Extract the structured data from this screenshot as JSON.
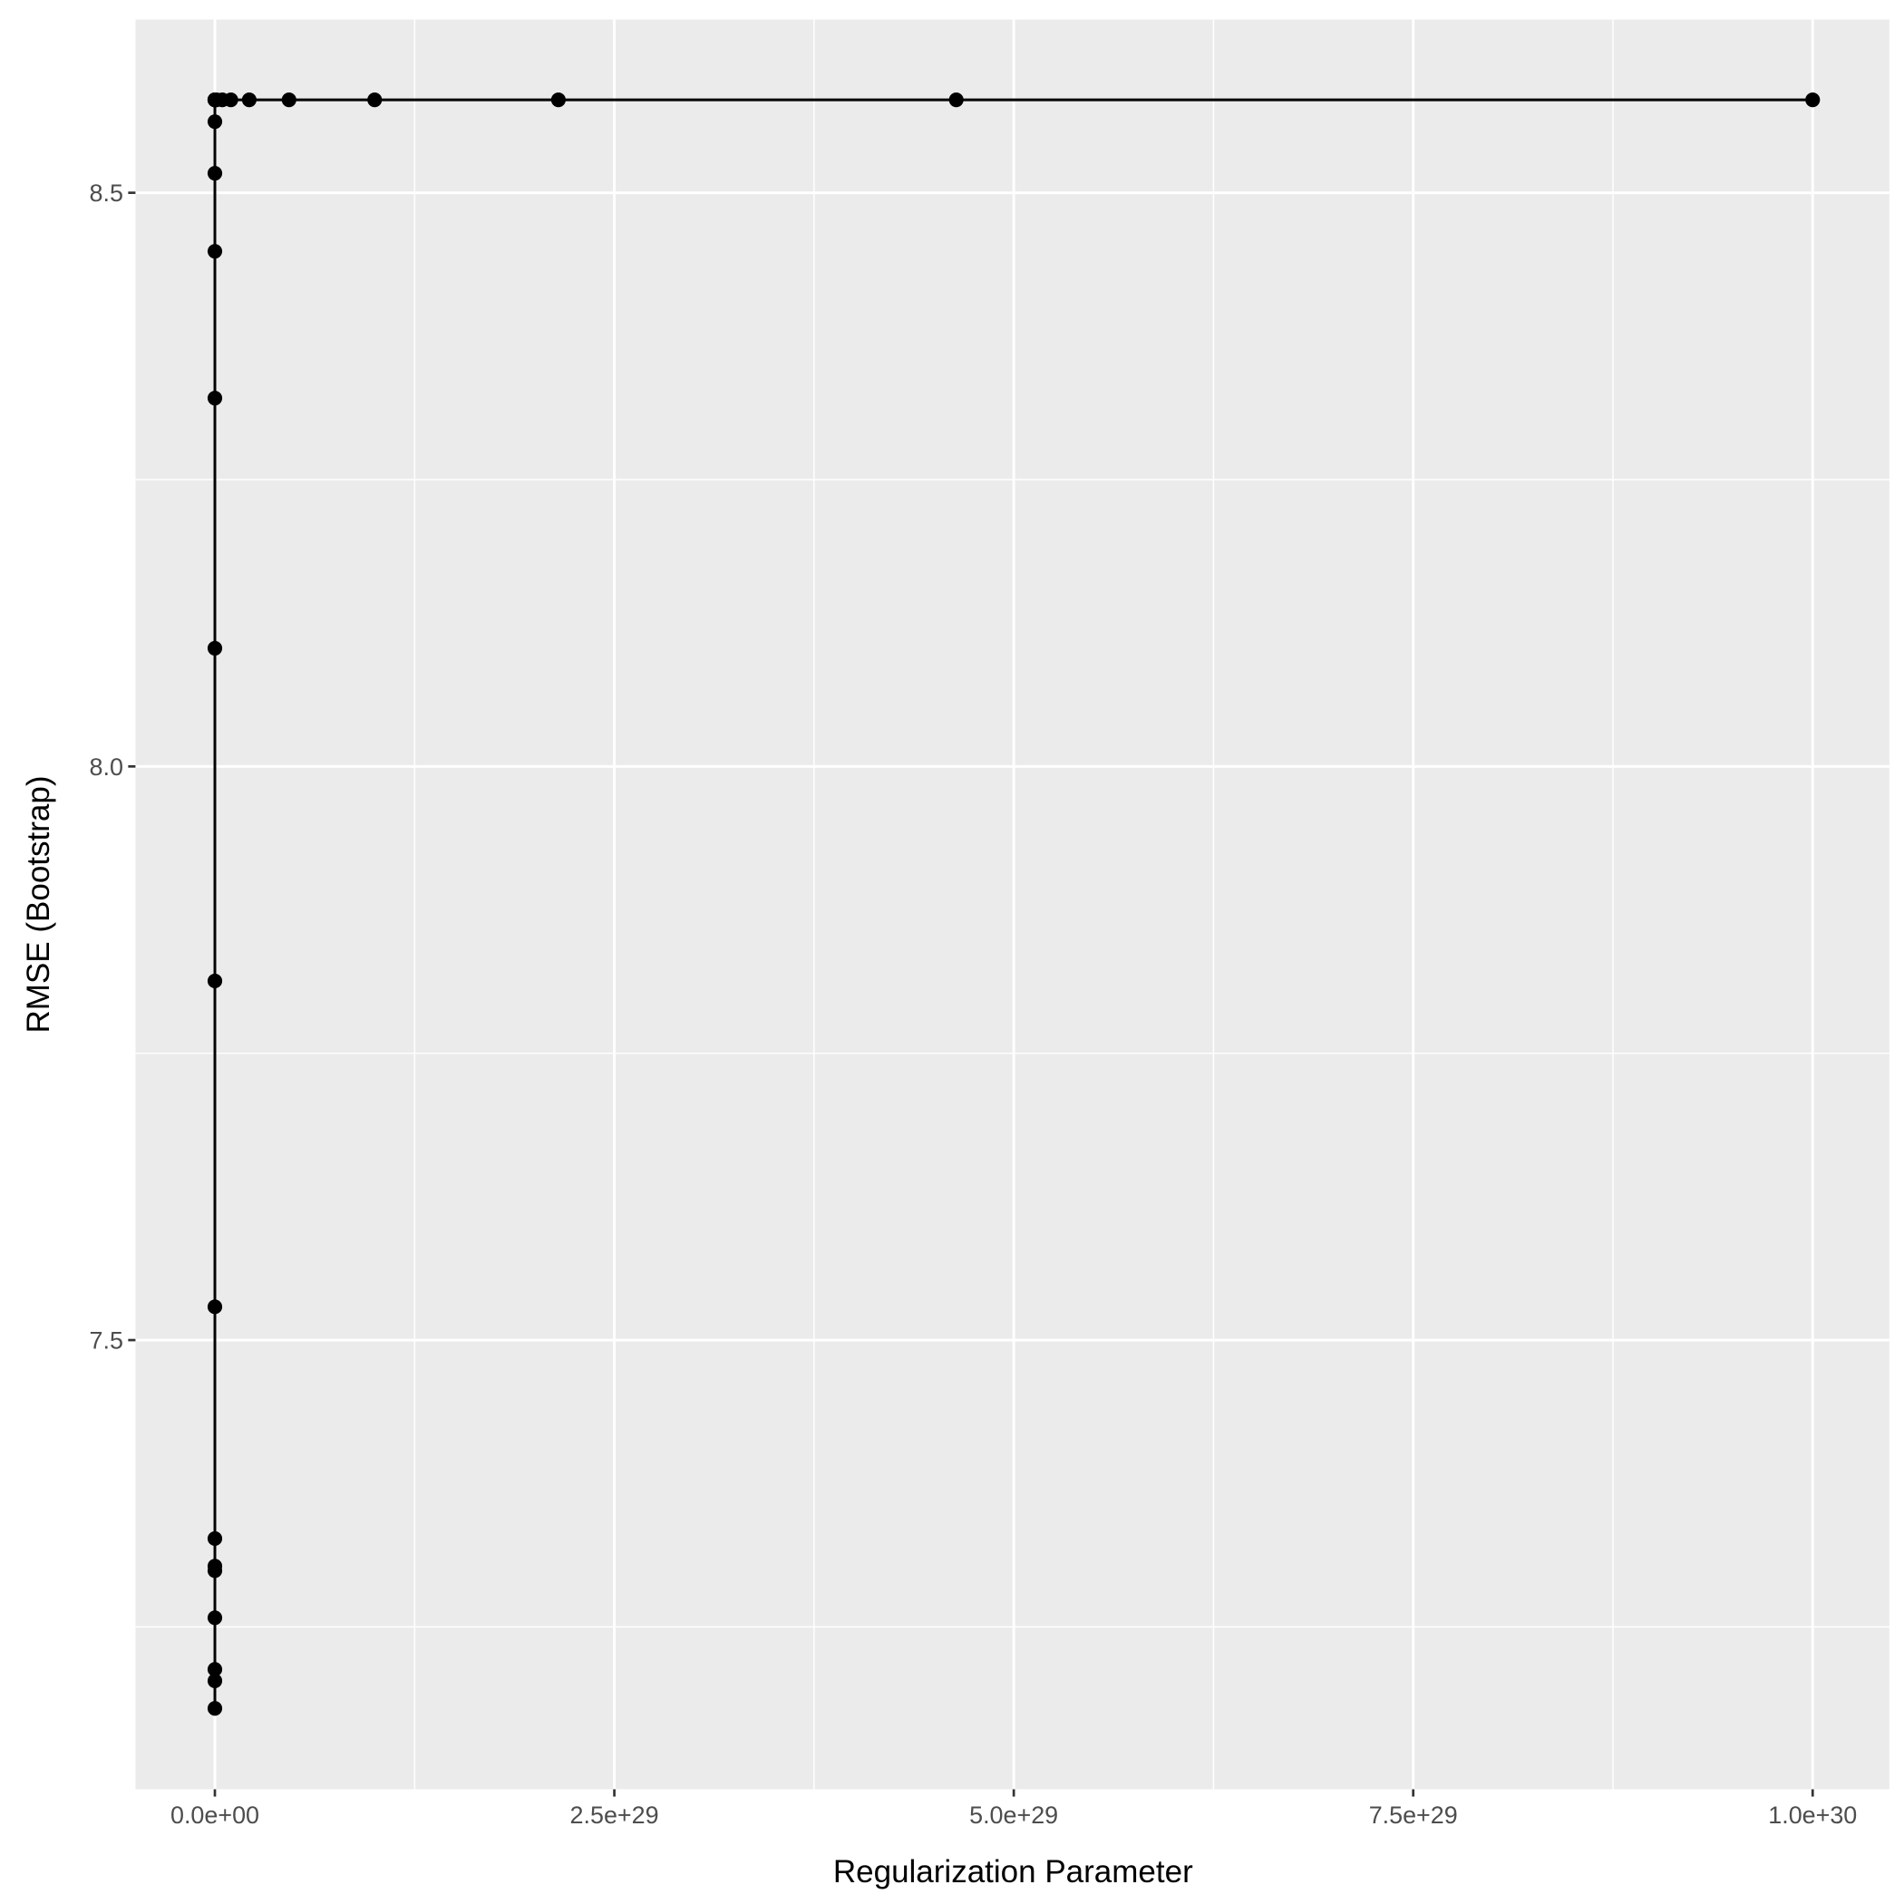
{
  "chart_data": {
    "type": "line",
    "x_label": "Regularization Parameter",
    "y_label": "RMSE (Bootstrap)",
    "x": [
      0.01,
      0.0215,
      0.0464,
      0.1,
      0.215,
      0.464,
      1,
      2.15,
      4.64,
      10,
      21.5,
      46.4,
      100,
      215,
      100000.0,
      10000000000.0,
      1000000000000000.0,
      1e+20,
      1e+25,
      1e+27,
      4.64e+27,
      1e+28,
      2.15e+28,
      4.64e+28,
      1e+29,
      2.15e+29,
      4.64e+29,
      1e+30
    ],
    "series": [
      {
        "color": "#000000",
        "values": [
          7.179,
          7.203,
          7.213,
          7.258,
          7.299,
          7.303,
          7.327,
          7.529,
          7.813,
          8.103,
          8.321,
          8.449,
          8.517,
          8.562,
          8.581,
          8.581,
          8.581,
          8.581,
          8.581,
          8.581,
          8.581,
          8.581,
          8.581,
          8.581,
          8.581,
          8.581,
          8.581,
          8.581
        ]
      }
    ],
    "xlim": [
      -4.97e+28,
      1.048e+30
    ],
    "ylim": [
      7.1085,
      8.651
    ],
    "xticks": [
      {
        "value": 0,
        "label": "0.0e+00"
      },
      {
        "value": 2.5e+29,
        "label": "2.5e+29"
      },
      {
        "value": 5e+29,
        "label": "5.0e+29"
      },
      {
        "value": 7.5e+29,
        "label": "7.5e+29"
      },
      {
        "value": 1e+30,
        "label": "1.0e+30"
      }
    ],
    "yticks": [
      {
        "value": 7.5,
        "label": "7.5"
      },
      {
        "value": 8,
        "label": "8.0"
      },
      {
        "value": 8.5,
        "label": "8.5"
      }
    ],
    "grid": true,
    "panel_color": "#ebebeb"
  }
}
